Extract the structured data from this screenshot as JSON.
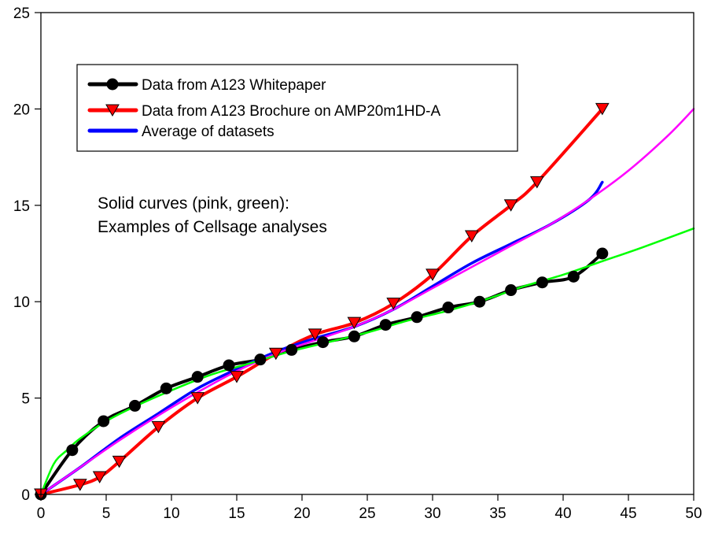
{
  "chart_data": {
    "type": "line",
    "title": "",
    "xlabel": "",
    "ylabel": "",
    "xlim": [
      0,
      50
    ],
    "ylim": [
      0,
      25
    ],
    "x_ticks": [
      "0",
      "5",
      "10",
      "15",
      "20",
      "25",
      "30",
      "35",
      "40",
      "45",
      "50"
    ],
    "y_ticks": [
      "0",
      "5",
      "10",
      "15",
      "20",
      "25"
    ],
    "grid": false,
    "legend_position": "top-left",
    "legend": [
      "Data from A123 Whitepaper",
      "Data from A123 Brochure on AMP20m1HD-A",
      "Average of datasets"
    ],
    "annotation_lines": [
      "Solid curves (pink, green):",
      "Examples of Cellsage analyses"
    ],
    "series": [
      {
        "name": "Data from A123 Whitepaper",
        "color": "#000000",
        "marker": "circle",
        "x": [
          0,
          2.4,
          4.8,
          7.2,
          9.6,
          12.0,
          14.4,
          16.8,
          19.2,
          21.6,
          24.0,
          26.4,
          28.8,
          31.2,
          33.6,
          36.0,
          38.4,
          40.8,
          43.0
        ],
        "y": [
          0,
          2.3,
          3.8,
          4.6,
          5.5,
          6.1,
          6.7,
          7.0,
          7.5,
          7.9,
          8.2,
          8.8,
          9.2,
          9.7,
          10.0,
          10.6,
          11.0,
          11.3,
          12.5
        ]
      },
      {
        "name": "Data from A123 Brochure on AMP20m1HD-A",
        "color": "#ff0000",
        "marker": "triangle-down",
        "x": [
          0,
          3.0,
          4.5,
          6.0,
          9.0,
          12.0,
          15.0,
          18.0,
          21.0,
          24.0,
          27.0,
          30.0,
          33.0,
          36.0,
          38.0,
          43.0
        ],
        "y": [
          0,
          0.5,
          0.9,
          1.7,
          3.5,
          5.0,
          6.1,
          7.3,
          8.3,
          8.9,
          9.9,
          11.4,
          13.4,
          15.0,
          16.2,
          20.0
        ]
      },
      {
        "name": "Average of datasets",
        "color": "#0000ff",
        "marker": "none",
        "x": [
          0,
          3,
          6,
          9,
          12,
          15,
          18,
          21,
          24,
          27,
          30,
          33,
          36,
          39,
          42,
          43
        ],
        "y": [
          0,
          1.4,
          2.9,
          4.2,
          5.5,
          6.5,
          7.4,
          8.1,
          8.7,
          9.6,
          10.8,
          12.0,
          13.0,
          14.0,
          15.3,
          16.2
        ]
      },
      {
        "name": "",
        "color": "#ff00ff",
        "marker": "none",
        "x": [
          0,
          3,
          6,
          9,
          12,
          15,
          18,
          21,
          24,
          27,
          30,
          33,
          36,
          39,
          42,
          45,
          48,
          50
        ],
        "y": [
          0,
          1.4,
          2.8,
          4.1,
          5.3,
          6.4,
          7.3,
          8.0,
          8.7,
          9.6,
          10.7,
          11.8,
          12.9,
          14.0,
          15.3,
          16.8,
          18.6,
          20.0
        ]
      },
      {
        "name": "",
        "color": "#00ff00",
        "marker": "none",
        "x": [
          0,
          1,
          2,
          3,
          5,
          7,
          10,
          13,
          16,
          19,
          22,
          25,
          28,
          31,
          34,
          37,
          40,
          43,
          46,
          50
        ],
        "y": [
          0,
          1.6,
          2.3,
          2.9,
          3.8,
          4.5,
          5.4,
          6.2,
          6.8,
          7.4,
          7.9,
          8.4,
          9.0,
          9.5,
          10.1,
          10.8,
          11.4,
          12.1,
          12.8,
          13.8
        ]
      }
    ]
  }
}
